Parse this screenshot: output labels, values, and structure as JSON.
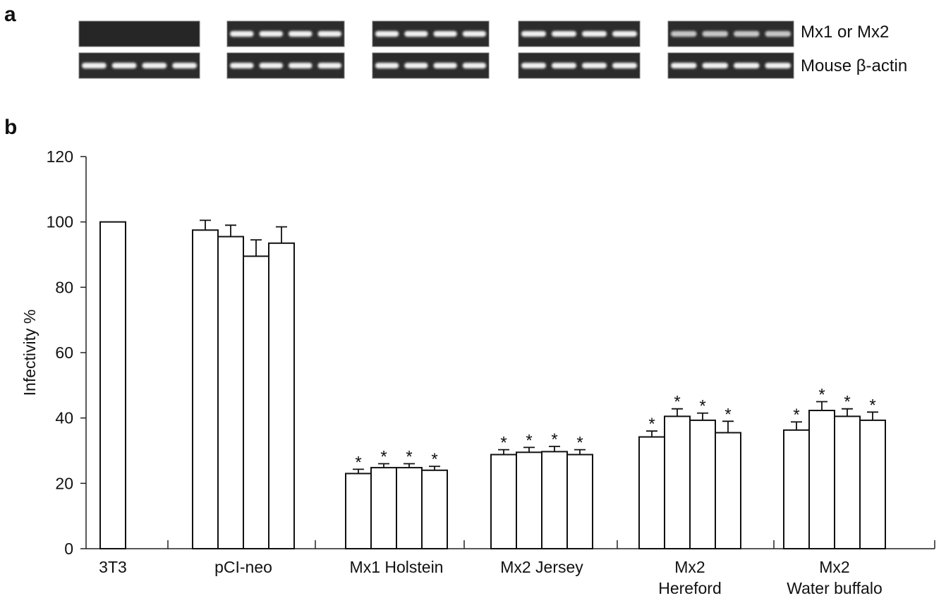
{
  "panel_a": {
    "letter": "a",
    "row_labels": [
      "Mx1 or Mx2",
      "Mouse β-actin"
    ]
  },
  "chart_data": {
    "type": "bar",
    "panel_letter": "b",
    "ylabel": "Infectivity %",
    "ylim": [
      0,
      120
    ],
    "yticks": [
      0,
      20,
      40,
      60,
      80,
      100,
      120
    ],
    "color": "#ffffff",
    "marker": "*",
    "groups": [
      {
        "label_lines": [
          "3T3"
        ],
        "values": [
          100
        ],
        "errors": [
          null
        ],
        "significant": [
          false
        ]
      },
      {
        "label_lines": [
          "pCI-neo"
        ],
        "values": [
          97.5,
          95.5,
          89.5,
          93.5
        ],
        "errors": [
          3,
          3.5,
          5,
          5
        ],
        "significant": [
          false,
          false,
          false,
          false
        ]
      },
      {
        "label_lines": [
          "Mx1  Holstein"
        ],
        "values": [
          23,
          24.8,
          24.8,
          24
        ],
        "errors": [
          1.3,
          1.2,
          1.2,
          1.2
        ],
        "significant": [
          true,
          true,
          true,
          true
        ]
      },
      {
        "label_lines": [
          "Mx2  Jersey"
        ],
        "values": [
          28.8,
          29.5,
          29.7,
          28.8
        ],
        "errors": [
          1.5,
          1.5,
          1.6,
          1.5
        ],
        "significant": [
          true,
          true,
          true,
          true
        ]
      },
      {
        "label_lines": [
          "Mx2",
          "Hereford"
        ],
        "values": [
          34.2,
          40.5,
          39.3,
          35.5
        ],
        "errors": [
          1.8,
          2.3,
          2.2,
          3.5
        ],
        "significant": [
          true,
          true,
          true,
          true
        ]
      },
      {
        "label_lines": [
          "Mx2",
          "Water buffalo"
        ],
        "values": [
          36.3,
          42.3,
          40.5,
          39.3
        ],
        "errors": [
          2.5,
          2.7,
          2.3,
          2.5
        ],
        "significant": [
          true,
          true,
          true,
          true
        ]
      }
    ]
  }
}
